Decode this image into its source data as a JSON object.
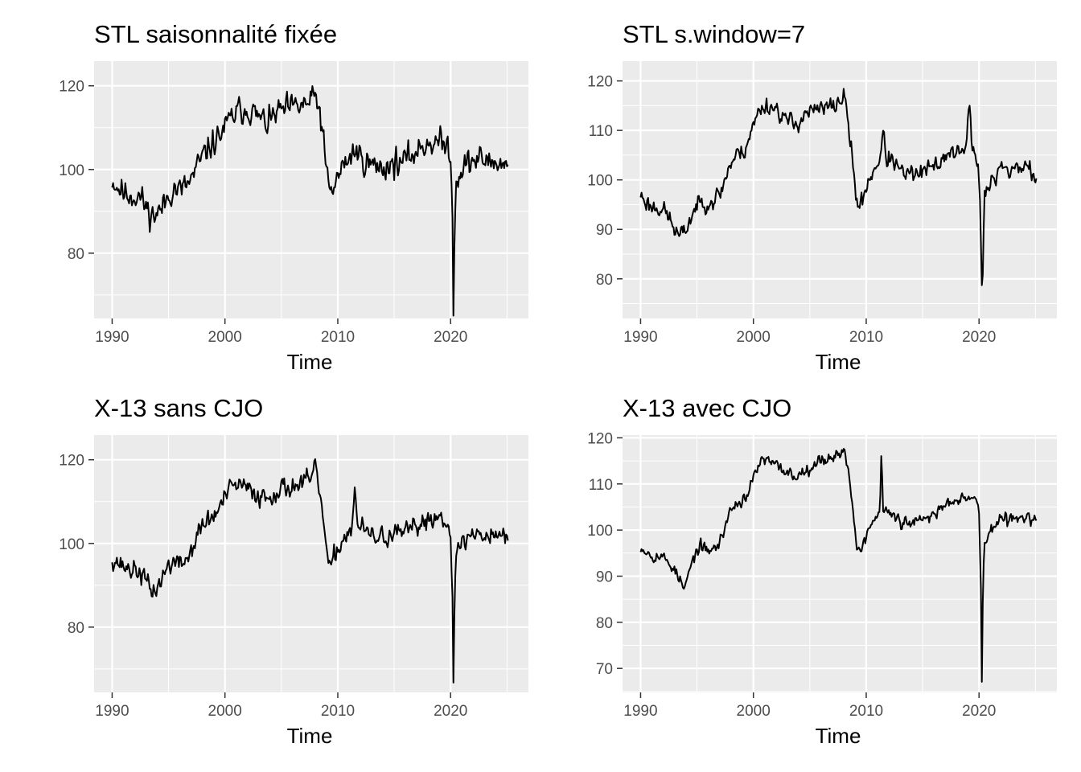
{
  "chart_data": [
    {
      "type": "line",
      "title": "STL saisonnalité fixée",
      "xlabel": "Time",
      "ylabel": "",
      "xlim": [
        1988.4,
        2026.9
      ],
      "ylim": [
        64.4,
        125.9
      ],
      "x_ticks": [
        1990,
        2000,
        2010,
        2020
      ],
      "y_ticks": [
        80,
        100,
        120
      ],
      "grid": true,
      "line_color": "#000000",
      "panel_color": "#ebebeb",
      "series": [
        {
          "x_start": 1990.0,
          "x_step": 0.0833333,
          "keypoints": [
            [
              1990.0,
              97.5
            ],
            [
              1990.4,
              96.0
            ],
            [
              1991.0,
              94.5
            ],
            [
              1991.5,
              94.0
            ],
            [
              1992.0,
              93.5
            ],
            [
              1992.5,
              93.5
            ],
            [
              1993.0,
              91.0
            ],
            [
              1993.5,
              89.0
            ],
            [
              1994.0,
              89.5
            ],
            [
              1994.5,
              91.0
            ],
            [
              1995.0,
              94.0
            ],
            [
              1995.5,
              95.5
            ],
            [
              1996.0,
              95.0
            ],
            [
              1996.7,
              96.5
            ],
            [
              1997.2,
              98.5
            ],
            [
              1997.8,
              102.0
            ],
            [
              1998.5,
              105.0
            ],
            [
              1999.2,
              107.0
            ],
            [
              2000.0,
              110.0
            ],
            [
              2000.6,
              112.5
            ],
            [
              2001.2,
              114.0
            ],
            [
              2002.0,
              114.5
            ],
            [
              2003.0,
              112.5
            ],
            [
              2003.8,
              111.0
            ],
            [
              2004.5,
              113.5
            ],
            [
              2005.5,
              114.5
            ],
            [
              2006.5,
              115.0
            ],
            [
              2007.5,
              116.0
            ],
            [
              2008.0,
              117.5
            ],
            [
              2008.4,
              114.0
            ],
            [
              2008.7,
              108.0
            ],
            [
              2009.0,
              99.0
            ],
            [
              2009.3,
              94.5
            ],
            [
              2009.7,
              96.0
            ],
            [
              2010.2,
              99.5
            ],
            [
              2010.8,
              102.0
            ],
            [
              2011.5,
              104.5
            ],
            [
              2012.2,
              102.5
            ],
            [
              2013.0,
              101.0
            ],
            [
              2014.0,
              100.5
            ],
            [
              2015.0,
              101.5
            ],
            [
              2016.0,
              102.0
            ],
            [
              2017.0,
              104.5
            ],
            [
              2018.0,
              106.5
            ],
            [
              2019.0,
              106.5
            ],
            [
              2019.8,
              105.5
            ],
            [
              2020.0,
              104.0
            ],
            [
              2020.17,
              88.0
            ],
            [
              2020.25,
              67.0
            ],
            [
              2020.33,
              83.0
            ],
            [
              2020.45,
              96.0
            ],
            [
              2020.8,
              99.5
            ],
            [
              2021.5,
              101.5
            ],
            [
              2022.5,
              102.5
            ],
            [
              2023.5,
              102.0
            ],
            [
              2024.5,
              101.5
            ],
            [
              2025.1,
              100.5
            ]
          ],
          "noise": 2.6,
          "seed": 11
        }
      ]
    },
    {
      "type": "line",
      "title": "STL s.window=7",
      "xlabel": "Time",
      "ylabel": "",
      "xlim": [
        1988.4,
        2026.9
      ],
      "ylim": [
        72.0,
        124.0
      ],
      "x_ticks": [
        1990,
        2000,
        2010,
        2020
      ],
      "y_ticks": [
        80,
        90,
        100,
        110,
        120
      ],
      "grid": true,
      "line_color": "#000000",
      "panel_color": "#ebebeb",
      "series": [
        {
          "x_start": 1990.0,
          "x_step": 0.0833333,
          "keypoints": [
            [
              1990.0,
              97.0
            ],
            [
              1990.5,
              95.5
            ],
            [
              1991.0,
              94.5
            ],
            [
              1991.5,
              94.5
            ],
            [
              1992.0,
              94.0
            ],
            [
              1992.5,
              92.5
            ],
            [
              1993.0,
              90.0
            ],
            [
              1993.4,
              88.5
            ],
            [
              1993.9,
              89.5
            ],
            [
              1994.5,
              92.5
            ],
            [
              1995.0,
              95.0
            ],
            [
              1995.5,
              95.5
            ],
            [
              1996.0,
              95.5
            ],
            [
              1996.6,
              96.0
            ],
            [
              1997.2,
              98.0
            ],
            [
              1997.8,
              102.5
            ],
            [
              1998.5,
              105.0
            ],
            [
              1999.2,
              106.0
            ],
            [
              2000.0,
              111.0
            ],
            [
              2000.6,
              114.5
            ],
            [
              2001.2,
              115.0
            ],
            [
              2002.0,
              114.5
            ],
            [
              2003.0,
              112.0
            ],
            [
              2003.8,
              111.0
            ],
            [
              2004.5,
              113.5
            ],
            [
              2005.5,
              114.0
            ],
            [
              2006.5,
              114.5
            ],
            [
              2007.5,
              115.5
            ],
            [
              2008.0,
              117.0
            ],
            [
              2008.4,
              112.0
            ],
            [
              2008.8,
              103.0
            ],
            [
              2009.1,
              97.0
            ],
            [
              2009.4,
              94.0
            ],
            [
              2009.8,
              97.0
            ],
            [
              2010.2,
              100.0
            ],
            [
              2010.7,
              102.0
            ],
            [
              2011.2,
              104.5
            ],
            [
              2011.5,
              109.0
            ],
            [
              2011.8,
              104.5
            ],
            [
              2012.5,
              103.5
            ],
            [
              2013.0,
              101.5
            ],
            [
              2014.0,
              101.0
            ],
            [
              2015.0,
              101.5
            ],
            [
              2016.0,
              102.5
            ],
            [
              2017.0,
              105.0
            ],
            [
              2018.0,
              106.0
            ],
            [
              2018.8,
              105.0
            ],
            [
              2019.1,
              115.5
            ],
            [
              2019.4,
              107.0
            ],
            [
              2019.9,
              104.0
            ],
            [
              2020.1,
              95.0
            ],
            [
              2020.2,
              84.0
            ],
            [
              2020.28,
              74.5
            ],
            [
              2020.38,
              86.0
            ],
            [
              2020.5,
              97.0
            ],
            [
              2020.9,
              98.5
            ],
            [
              2021.5,
              100.5
            ],
            [
              2022.0,
              104.0
            ],
            [
              2022.5,
              101.5
            ],
            [
              2023.5,
              102.5
            ],
            [
              2024.3,
              103.0
            ],
            [
              2024.8,
              101.0
            ],
            [
              2025.1,
              100.0
            ]
          ],
          "noise": 1.5,
          "seed": 23
        }
      ]
    },
    {
      "type": "line",
      "title": "X-13 sans CJO",
      "xlabel": "Time",
      "ylabel": "",
      "xlim": [
        1988.4,
        2026.9
      ],
      "ylim": [
        64.4,
        125.9
      ],
      "x_ticks": [
        1990,
        2000,
        2010,
        2020
      ],
      "y_ticks": [
        80,
        100,
        120
      ],
      "grid": true,
      "line_color": "#000000",
      "panel_color": "#ebebeb",
      "series": [
        {
          "x_start": 1990.0,
          "x_step": 0.0833333,
          "keypoints": [
            [
              1990.0,
              96.5
            ],
            [
              1990.5,
              95.5
            ],
            [
              1991.0,
              94.5
            ],
            [
              1991.5,
              94.0
            ],
            [
              1992.0,
              93.5
            ],
            [
              1992.5,
              93.0
            ],
            [
              1993.0,
              91.0
            ],
            [
              1993.5,
              88.5
            ],
            [
              1994.0,
              89.5
            ],
            [
              1994.5,
              92.0
            ],
            [
              1995.0,
              95.0
            ],
            [
              1995.5,
              95.5
            ],
            [
              1996.0,
              95.0
            ],
            [
              1996.7,
              96.5
            ],
            [
              1997.2,
              99.5
            ],
            [
              1997.8,
              103.5
            ],
            [
              1998.5,
              105.5
            ],
            [
              1999.2,
              107.0
            ],
            [
              2000.0,
              111.0
            ],
            [
              2000.6,
              113.5
            ],
            [
              2001.2,
              114.0
            ],
            [
              2002.0,
              113.0
            ],
            [
              2003.0,
              111.5
            ],
            [
              2003.8,
              111.0
            ],
            [
              2004.5,
              112.5
            ],
            [
              2005.5,
              113.5
            ],
            [
              2006.5,
              114.0
            ],
            [
              2007.5,
              115.0
            ],
            [
              2008.0,
              117.5
            ],
            [
              2008.4,
              113.0
            ],
            [
              2008.7,
              106.0
            ],
            [
              2009.0,
              98.0
            ],
            [
              2009.3,
              93.0
            ],
            [
              2009.7,
              97.0
            ],
            [
              2010.2,
              100.0
            ],
            [
              2010.8,
              102.0
            ],
            [
              2011.2,
              104.0
            ],
            [
              2011.5,
              112.0
            ],
            [
              2011.8,
              104.0
            ],
            [
              2012.5,
              103.0
            ],
            [
              2013.0,
              101.5
            ],
            [
              2014.0,
              101.5
            ],
            [
              2015.0,
              102.0
            ],
            [
              2016.0,
              102.5
            ],
            [
              2017.0,
              104.0
            ],
            [
              2018.0,
              106.0
            ],
            [
              2019.0,
              106.5
            ],
            [
              2019.8,
              105.5
            ],
            [
              2020.0,
              103.0
            ],
            [
              2020.17,
              86.0
            ],
            [
              2020.25,
              66.5
            ],
            [
              2020.33,
              82.0
            ],
            [
              2020.45,
              95.0
            ],
            [
              2020.8,
              99.5
            ],
            [
              2021.5,
              101.5
            ],
            [
              2022.5,
              102.5
            ],
            [
              2023.5,
              102.0
            ],
            [
              2024.5,
              102.5
            ],
            [
              2025.1,
              100.5
            ]
          ],
          "noise": 2.0,
          "seed": 37
        }
      ]
    },
    {
      "type": "line",
      "title": "X-13 avec CJO",
      "xlabel": "Time",
      "ylabel": "",
      "xlim": [
        1988.4,
        2026.9
      ],
      "ylim": [
        64.8,
        120.6
      ],
      "x_ticks": [
        1990,
        2000,
        2010,
        2020
      ],
      "y_ticks": [
        70,
        80,
        90,
        100,
        110,
        120
      ],
      "grid": true,
      "line_color": "#000000",
      "panel_color": "#ebebeb",
      "series": [
        {
          "x_start": 1990.0,
          "x_step": 0.0833333,
          "keypoints": [
            [
              1990.0,
              96.5
            ],
            [
              1990.5,
              95.5
            ],
            [
              1991.0,
              94.5
            ],
            [
              1991.5,
              94.5
            ],
            [
              1992.0,
              94.0
            ],
            [
              1992.5,
              93.0
            ],
            [
              1993.0,
              91.5
            ],
            [
              1993.5,
              89.0
            ],
            [
              1993.9,
              87.0
            ],
            [
              1994.3,
              91.0
            ],
            [
              1994.8,
              94.5
            ],
            [
              1995.2,
              96.5
            ],
            [
              1995.8,
              95.5
            ],
            [
              1996.5,
              96.0
            ],
            [
              1997.0,
              97.0
            ],
            [
              1997.5,
              101.0
            ],
            [
              1998.0,
              104.5
            ],
            [
              1998.7,
              106.0
            ],
            [
              1999.3,
              107.0
            ],
            [
              2000.0,
              111.0
            ],
            [
              2000.6,
              115.0
            ],
            [
              2001.2,
              115.0
            ],
            [
              2002.0,
              114.0
            ],
            [
              2003.0,
              112.5
            ],
            [
              2003.8,
              111.5
            ],
            [
              2004.5,
              113.0
            ],
            [
              2005.5,
              114.5
            ],
            [
              2006.5,
              115.5
            ],
            [
              2007.5,
              116.5
            ],
            [
              2008.0,
              117.0
            ],
            [
              2008.4,
              114.0
            ],
            [
              2008.8,
              105.0
            ],
            [
              2009.1,
              98.0
            ],
            [
              2009.4,
              94.5
            ],
            [
              2009.8,
              97.5
            ],
            [
              2010.2,
              100.0
            ],
            [
              2010.7,
              102.5
            ],
            [
              2011.2,
              103.5
            ],
            [
              2011.35,
              117.0
            ],
            [
              2011.5,
              104.5
            ],
            [
              2012.5,
              103.0
            ],
            [
              2013.0,
              101.5
            ],
            [
              2014.0,
              101.5
            ],
            [
              2015.0,
              102.0
            ],
            [
              2016.0,
              103.5
            ],
            [
              2017.0,
              105.5
            ],
            [
              2018.0,
              107.0
            ],
            [
              2019.0,
              107.5
            ],
            [
              2019.8,
              106.5
            ],
            [
              2020.0,
              103.5
            ],
            [
              2020.17,
              88.0
            ],
            [
              2020.25,
              67.0
            ],
            [
              2020.33,
              84.0
            ],
            [
              2020.45,
              96.0
            ],
            [
              2020.8,
              99.5
            ],
            [
              2021.3,
              100.5
            ],
            [
              2022.0,
              102.5
            ],
            [
              2022.8,
              102.0
            ],
            [
              2023.5,
              103.5
            ],
            [
              2024.3,
              102.5
            ],
            [
              2025.1,
              101.5
            ]
          ],
          "noise": 1.1,
          "seed": 53
        }
      ]
    }
  ]
}
